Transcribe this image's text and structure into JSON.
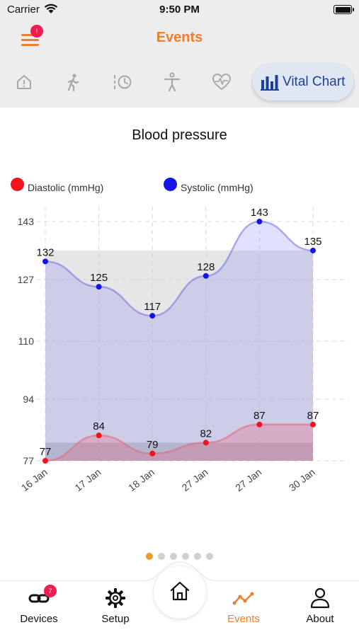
{
  "status_bar": {
    "carrier": "Carrier",
    "time": "9:50 PM"
  },
  "header": {
    "title": "Events",
    "menu_badge": "!"
  },
  "tabs": {
    "items": [
      {
        "icon": "home-alert-icon"
      },
      {
        "icon": "walking-person-icon"
      },
      {
        "icon": "history-icon"
      },
      {
        "icon": "body-icon"
      },
      {
        "icon": "heart-pulse-icon"
      }
    ],
    "active": {
      "icon": "bar-chart-icon",
      "label": "Vital Chart"
    }
  },
  "chart_data": {
    "type": "line",
    "title": "Blood pressure",
    "categories": [
      "16 Jan",
      "17 Jan",
      "18 Jan",
      "27 Jan",
      "27 Jan",
      "30 Jan"
    ],
    "series": [
      {
        "name": "Diastolic (mmHg)",
        "values": [
          77,
          84,
          79,
          82,
          87,
          87
        ],
        "color": "#f2131f"
      },
      {
        "name": "Systolic (mmHg)",
        "values": [
          132,
          125,
          117,
          128,
          143,
          135
        ],
        "color": "#1414e6"
      }
    ],
    "y_ticks": [
      77,
      94,
      110,
      127,
      143
    ],
    "ylim": [
      77,
      143
    ],
    "grid": true,
    "legend_position": "top",
    "data_labels": true
  },
  "pager": {
    "count": 6,
    "active": 0,
    "active_color": "#ef9a35"
  },
  "bottom_nav": {
    "devices": {
      "label": "Devices",
      "badge": "7"
    },
    "setup": {
      "label": "Setup"
    },
    "home": {
      "icon": "home-icon"
    },
    "events": {
      "label": "Events"
    },
    "about": {
      "label": "About"
    }
  },
  "colors": {
    "accent": "#ef7e2e",
    "badge": "#ee1d52",
    "active_tab_text": "#1f3f9e"
  }
}
